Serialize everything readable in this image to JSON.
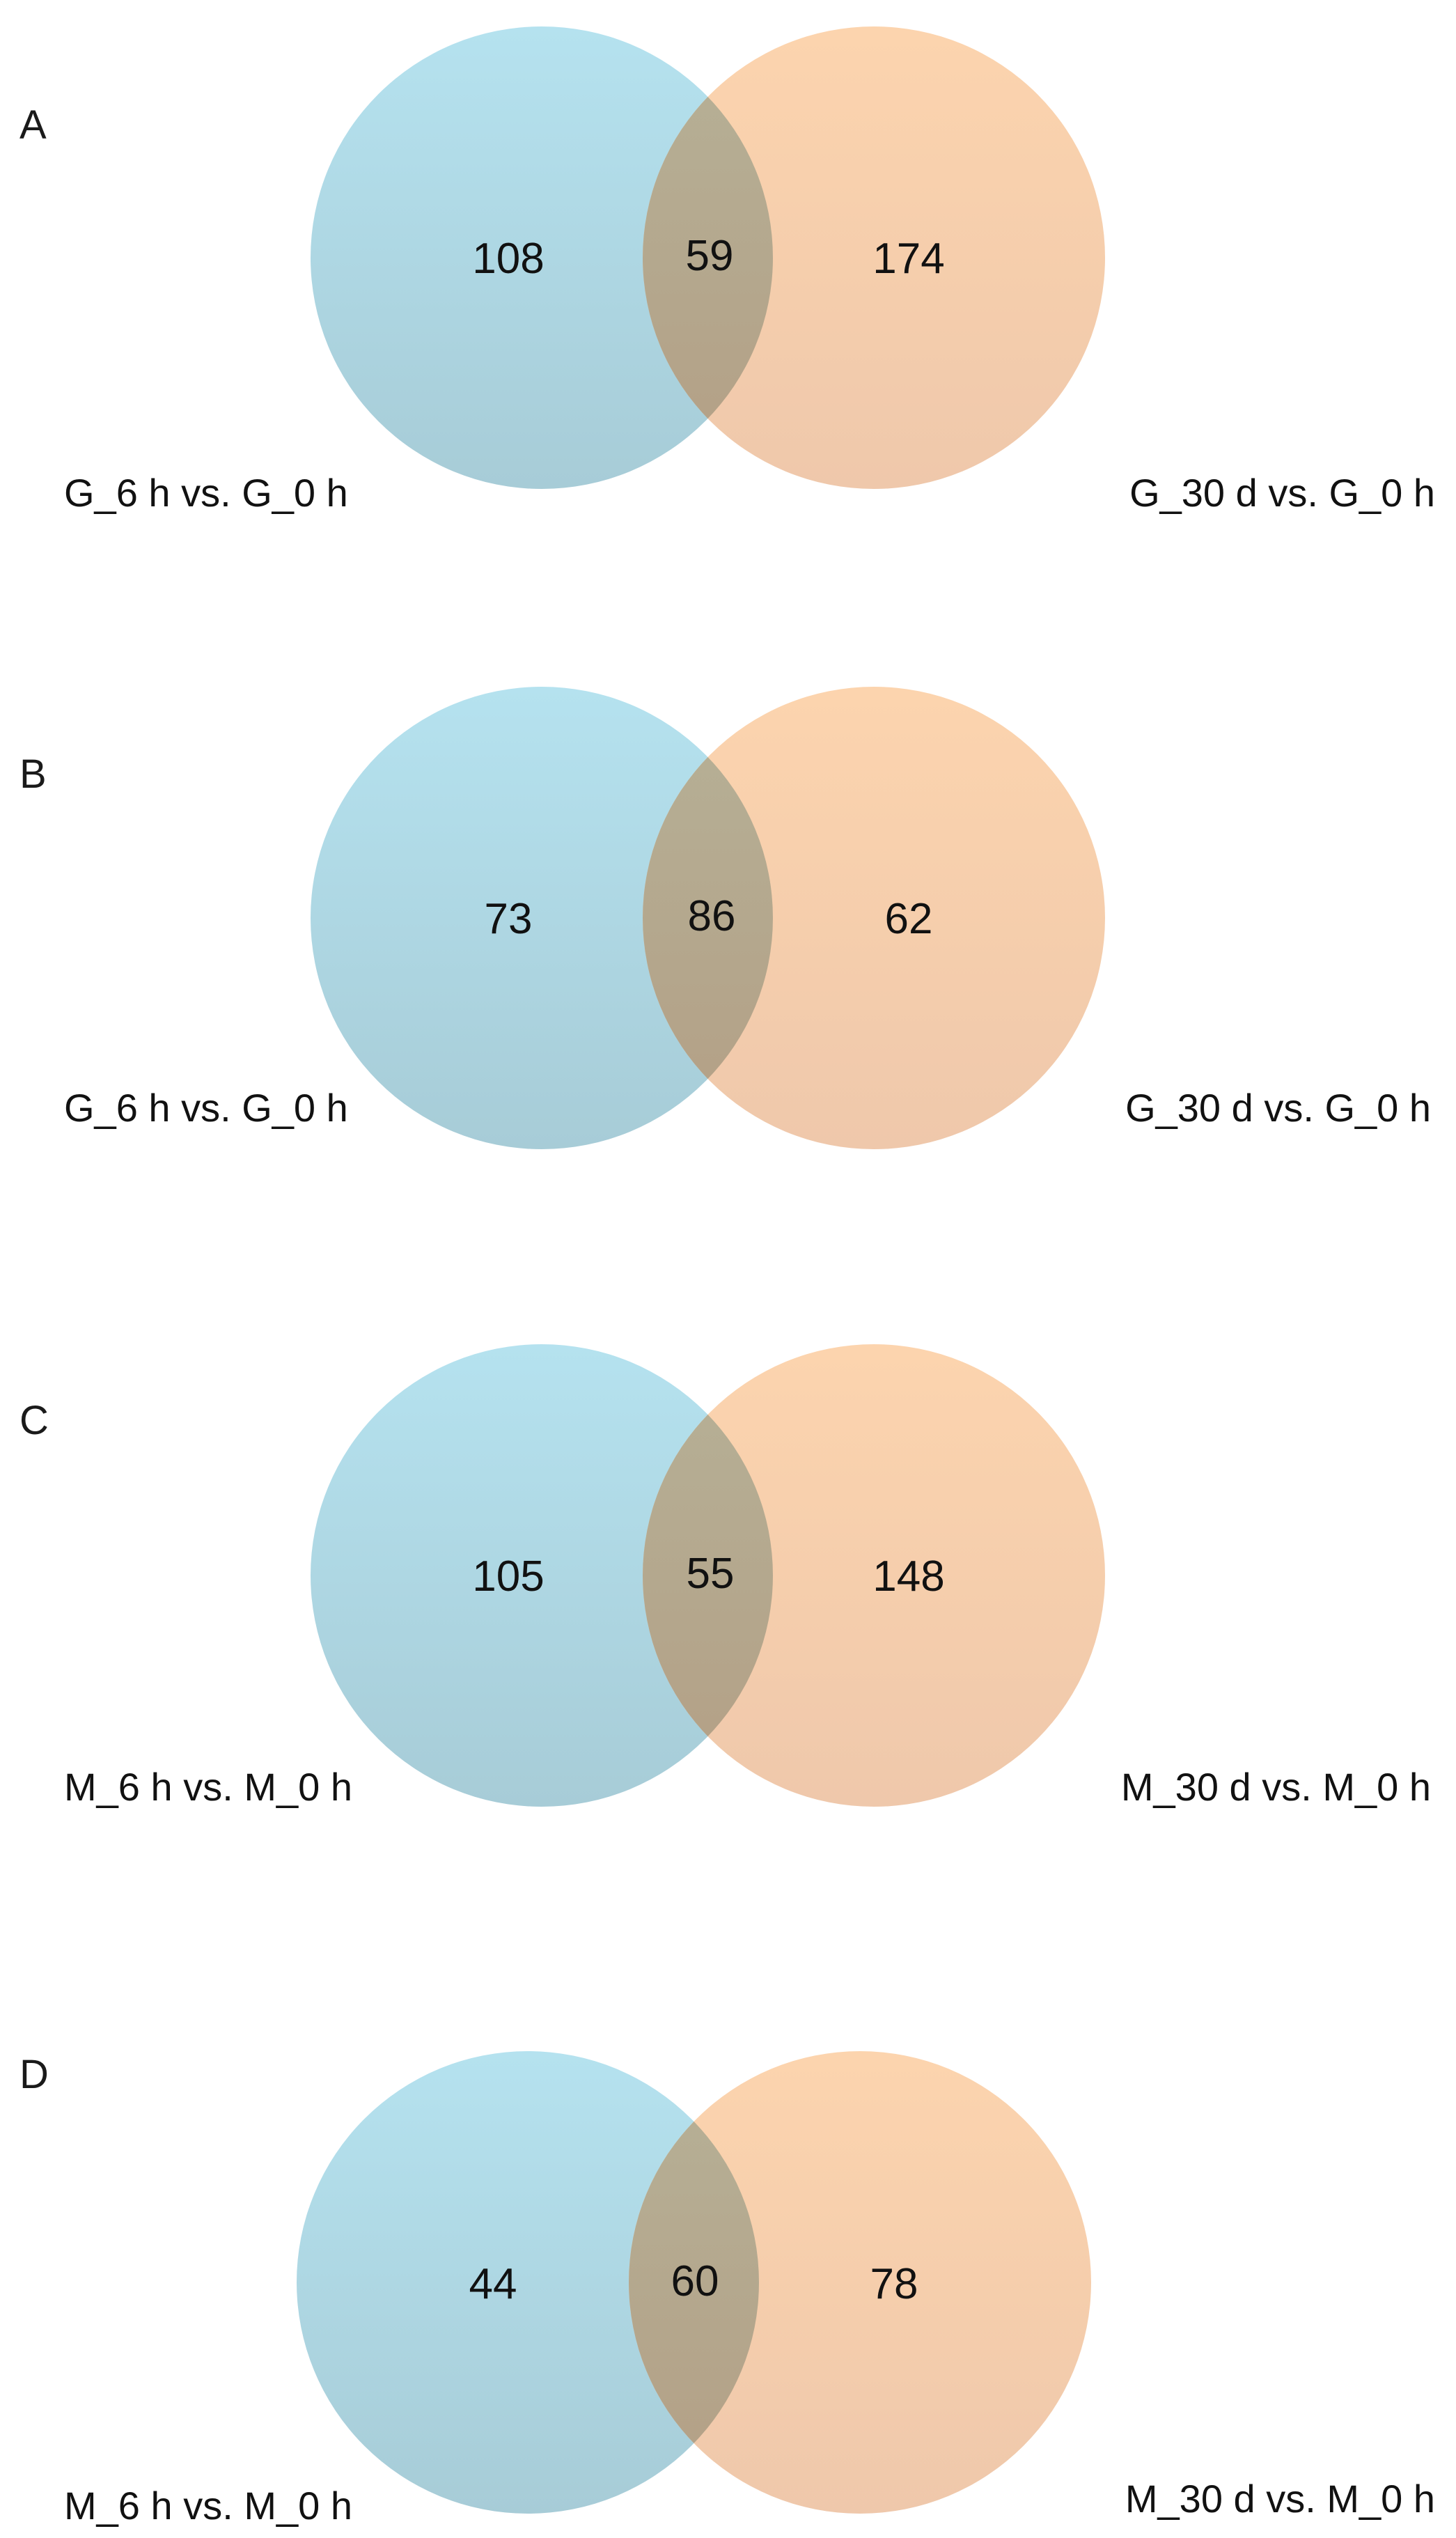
{
  "colors": {
    "left_top": "#b5e2ef",
    "left_bottom": "#a7ccd7",
    "right_top": "#fcd4ae",
    "right_bottom": "#efc8ab",
    "overlap_top": "#b6b197",
    "overlap_bottom": "#b39f85"
  },
  "panels": [
    {
      "letter": "A",
      "left_only": "108",
      "overlap": "59",
      "right_only": "174",
      "left_label": "G_6 h vs. G_0 h",
      "right_label": "G_30 d vs. G_0 h"
    },
    {
      "letter": "B",
      "left_only": "73",
      "overlap": "86",
      "right_only": "62",
      "left_label": "G_6 h vs. G_0 h",
      "right_label": "G_30 d vs. G_0 h"
    },
    {
      "letter": "C",
      "left_only": "105",
      "overlap": "55",
      "right_only": "148",
      "left_label": "M_6 h vs. M_0 h",
      "right_label": "M_30 d vs. M_0 h"
    },
    {
      "letter": "D",
      "left_only": "44",
      "overlap": "60",
      "right_only": "78",
      "left_label": "M_6 h vs. M_0 h",
      "right_label": "M_30 d vs. M_0 h"
    }
  ]
}
